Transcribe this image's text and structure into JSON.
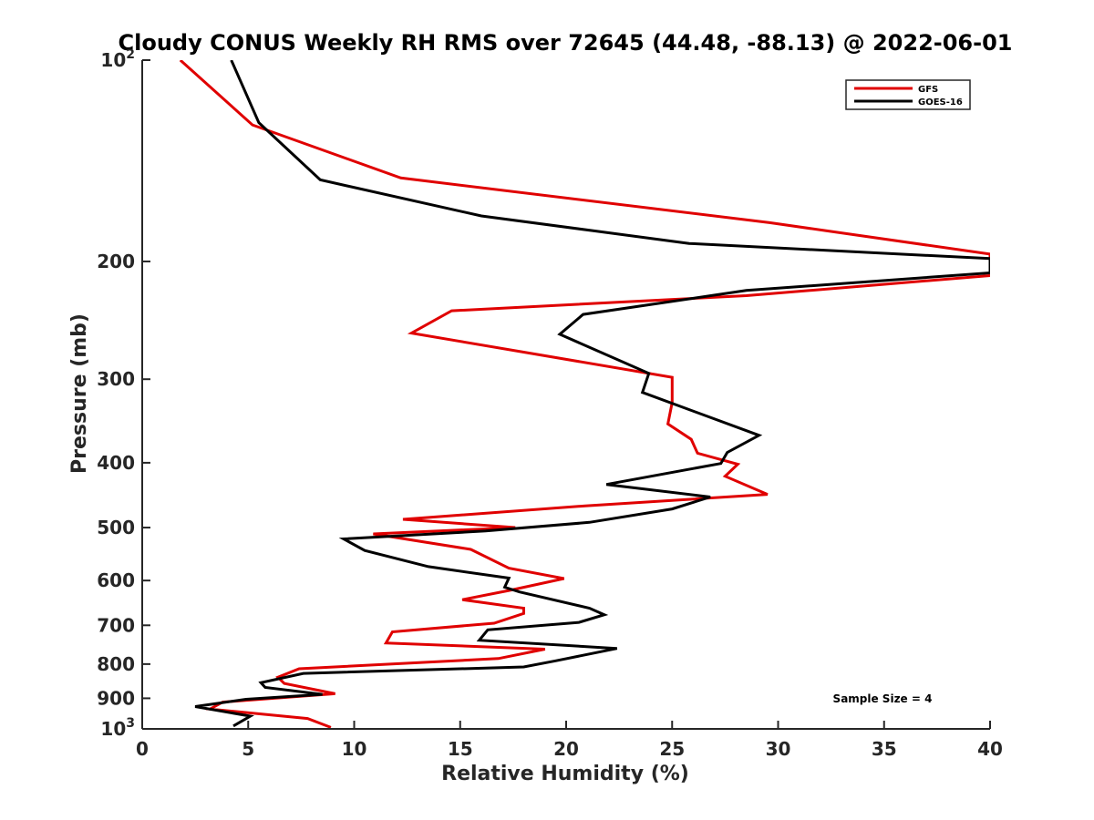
{
  "chart_data": {
    "type": "line",
    "title": "Cloudy CONUS Weekly RH RMS over 72645 (44.48, -88.13) @ 2022-06-01",
    "xlabel": "Relative Humidity (%)",
    "ylabel": "Pressure (mb)",
    "xlim": [
      0,
      40
    ],
    "ylim": [
      100,
      1000
    ],
    "yscale": "log",
    "y_reversed": true,
    "grid": false,
    "legend_position": "top-right",
    "x_ticks": [
      0,
      5,
      10,
      15,
      20,
      25,
      30,
      35,
      40
    ],
    "x_tick_labels": [
      "0",
      "5",
      "10",
      "15",
      "20",
      "25",
      "30",
      "35",
      "40"
    ],
    "y_ticks": [
      100,
      200,
      300,
      400,
      500,
      600,
      700,
      800,
      900,
      1000
    ],
    "y_tick_labels": [
      {
        "base": "10",
        "sup": "2"
      },
      {
        "base": "200",
        "sup": ""
      },
      {
        "base": "300",
        "sup": ""
      },
      {
        "base": "400",
        "sup": ""
      },
      {
        "base": "500",
        "sup": ""
      },
      {
        "base": "600",
        "sup": ""
      },
      {
        "base": "700",
        "sup": ""
      },
      {
        "base": "800",
        "sup": ""
      },
      {
        "base": "900",
        "sup": ""
      },
      {
        "base": "10",
        "sup": "3"
      }
    ],
    "annotation": "Sample Size = 4",
    "series": [
      {
        "name": "GFS",
        "color": "#e00000",
        "points": [
          [
            1.8,
            100
          ],
          [
            5.2,
            125
          ],
          [
            12.2,
            150
          ],
          [
            29.6,
            175
          ],
          [
            40.0,
            195
          ],
          [
            40.0,
            210
          ],
          [
            28.5,
            225
          ],
          [
            14.6,
            237
          ],
          [
            12.7,
            256
          ],
          [
            25.0,
            298
          ],
          [
            25.0,
            325
          ],
          [
            24.8,
            350
          ],
          [
            25.9,
            369
          ],
          [
            26.2,
            387
          ],
          [
            28.1,
            402
          ],
          [
            27.5,
            419
          ],
          [
            29.5,
            446
          ],
          [
            20.9,
            464
          ],
          [
            12.3,
            486
          ],
          [
            17.6,
            500
          ],
          [
            10.9,
            511
          ],
          [
            15.5,
            539
          ],
          [
            17.3,
            575
          ],
          [
            19.9,
            596
          ],
          [
            17.3,
            621
          ],
          [
            15.1,
            641
          ],
          [
            18.0,
            660
          ],
          [
            18.0,
            672
          ],
          [
            16.6,
            695
          ],
          [
            11.8,
            716
          ],
          [
            11.5,
            744
          ],
          [
            19.0,
            760
          ],
          [
            16.8,
            785
          ],
          [
            7.4,
            813
          ],
          [
            6.4,
            837
          ],
          [
            6.7,
            855
          ],
          [
            9.1,
            886
          ],
          [
            3.8,
            912
          ],
          [
            3.2,
            934
          ],
          [
            7.8,
            965
          ],
          [
            8.9,
            995
          ]
        ]
      },
      {
        "name": "GOES-16",
        "color": "#000000",
        "points": [
          [
            4.2,
            100
          ],
          [
            5.5,
            124
          ],
          [
            8.4,
            151
          ],
          [
            16.0,
            171
          ],
          [
            25.8,
            188
          ],
          [
            40.0,
            198
          ],
          [
            40.0,
            208
          ],
          [
            28.5,
            221
          ],
          [
            20.8,
            240
          ],
          [
            19.7,
            257
          ],
          [
            23.9,
            294
          ],
          [
            23.6,
            314
          ],
          [
            29.1,
            364
          ],
          [
            27.6,
            386
          ],
          [
            27.3,
            401
          ],
          [
            21.9,
            431
          ],
          [
            26.8,
            450
          ],
          [
            25.0,
            469
          ],
          [
            21.1,
            491
          ],
          [
            16.2,
            506
          ],
          [
            9.5,
            520
          ],
          [
            10.5,
            541
          ],
          [
            13.5,
            572
          ],
          [
            17.3,
            595
          ],
          [
            17.1,
            614
          ],
          [
            17.8,
            624
          ],
          [
            21.1,
            660
          ],
          [
            21.8,
            675
          ],
          [
            20.6,
            693
          ],
          [
            16.3,
            711
          ],
          [
            15.9,
            737
          ],
          [
            22.4,
            758
          ],
          [
            19.5,
            791
          ],
          [
            18.0,
            808
          ],
          [
            7.6,
            826
          ],
          [
            5.6,
            853
          ],
          [
            5.8,
            867
          ],
          [
            8.5,
            888
          ],
          [
            4.9,
            903
          ],
          [
            2.5,
            926
          ],
          [
            5.1,
            957
          ],
          [
            4.3,
            990
          ]
        ]
      }
    ]
  }
}
